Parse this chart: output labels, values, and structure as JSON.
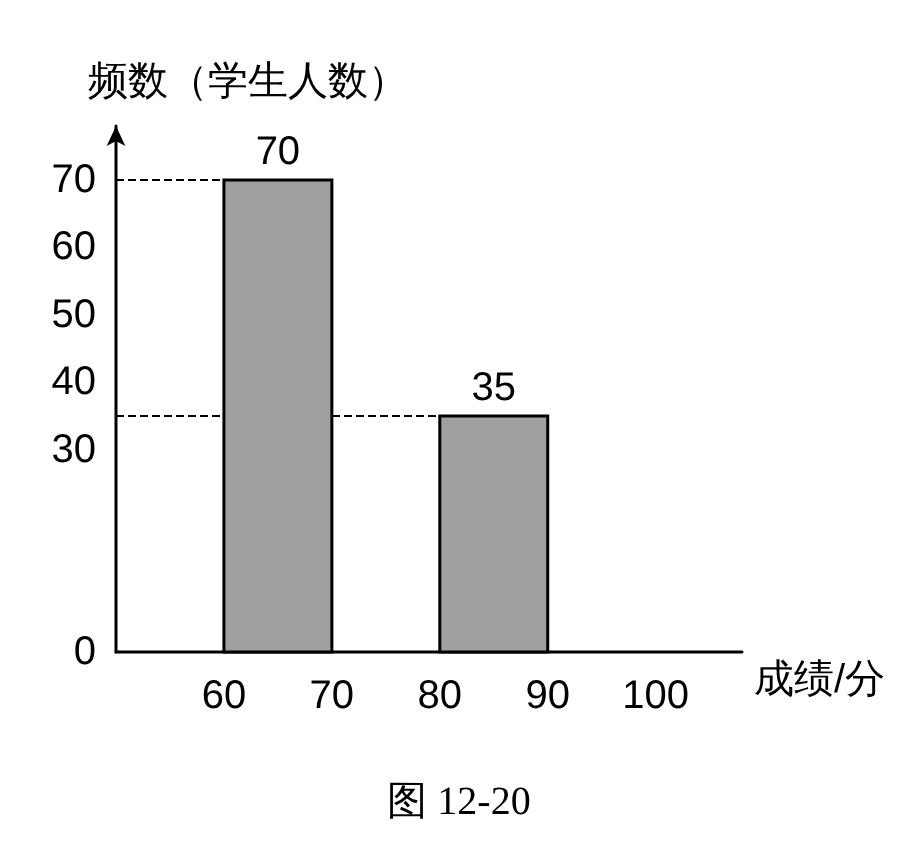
{
  "chart_data": {
    "type": "histogram",
    "ylabel": "频数（学生人数）",
    "xlabel": "成绩/分",
    "bins": [
      60,
      70,
      80,
      90,
      100
    ],
    "values": [
      70,
      null,
      35,
      null
    ],
    "color": "#a0a0a0",
    "xlim": [
      50,
      108
    ],
    "xticks": [
      60,
      70,
      80,
      90,
      100
    ],
    "ylim": [
      0,
      78
    ],
    "yticks": [
      0,
      30,
      40,
      50,
      60,
      70
    ],
    "data_labels": true,
    "grid": false,
    "ref_lines": [
      {
        "axis": "y",
        "value": 70,
        "label": null,
        "line_style": "dashed"
      },
      {
        "axis": "y",
        "value": 35,
        "label": null,
        "line_style": "dashed"
      }
    ],
    "annotations": [
      "图 12-20"
    ]
  }
}
